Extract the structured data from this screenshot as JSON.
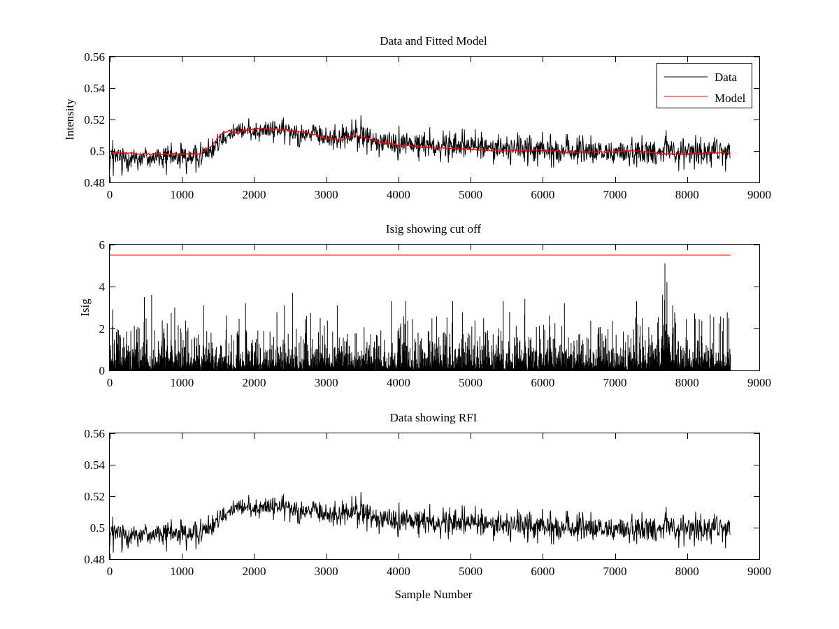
{
  "figure": {
    "background": "#ffffff",
    "data_color": "#000000",
    "model_color": "#ff0000"
  },
  "chart_data": [
    {
      "type": "line",
      "title": "Data and Fitted Model",
      "xlabel": "",
      "ylabel": "Intensity",
      "xlim": [
        0,
        9000
      ],
      "ylim": [
        0.48,
        0.56
      ],
      "xticks": [
        0,
        1000,
        2000,
        3000,
        4000,
        5000,
        6000,
        7000,
        8000,
        9000
      ],
      "yticks": [
        0.48,
        0.5,
        0.52,
        0.54,
        0.56
      ],
      "xtick_labels": [
        "0",
        "1000",
        "2000",
        "3000",
        "4000",
        "5000",
        "6000",
        "7000",
        "8000",
        "9000"
      ],
      "ytick_labels": [
        "0.48",
        "0.5",
        "0.52",
        "0.54",
        "0.56"
      ],
      "grid": false,
      "legend": {
        "position": "top-right",
        "entries": [
          "Data",
          "Model"
        ]
      },
      "series": [
        {
          "name": "Data",
          "color": "#000000",
          "envelope": {
            "x": [
              0,
              1000,
              1300,
              1500,
              1650,
              2000,
              2300,
              2700,
              3000,
              3200,
              3400,
              3600,
              4000,
              5000,
              6000,
              6500,
              7000,
              7500,
              7650,
              7700,
              7800,
              8000,
              8600
            ],
            "center": [
              0.496,
              0.496,
              0.498,
              0.507,
              0.512,
              0.513,
              0.514,
              0.512,
              0.508,
              0.508,
              0.511,
              0.508,
              0.505,
              0.503,
              0.501,
              0.499,
              0.499,
              0.499,
              0.5,
              0.505,
              0.5,
              0.499,
              0.5
            ],
            "low": [
              0.484,
              0.485,
              0.487,
              0.494,
              0.503,
              0.504,
              0.505,
              0.502,
              0.498,
              0.498,
              0.5,
              0.497,
              0.494,
              0.492,
              0.49,
              0.488,
              0.488,
              0.488,
              0.489,
              0.494,
              0.488,
              0.486,
              0.487
            ],
            "high": [
              0.507,
              0.505,
              0.508,
              0.515,
              0.52,
              0.521,
              0.521,
              0.52,
              0.517,
              0.517,
              0.525,
              0.519,
              0.516,
              0.514,
              0.512,
              0.51,
              0.51,
              0.51,
              0.513,
              0.522,
              0.512,
              0.51,
              0.511
            ]
          }
        },
        {
          "name": "Model",
          "color": "#ff0000",
          "x": [
            0,
            500,
            1000,
            1250,
            1400,
            1550,
            1650,
            1750,
            1850,
            2000,
            2300,
            2700,
            3000,
            3200,
            3400,
            3550,
            3800,
            4200,
            4600,
            5000,
            5500,
            6000,
            6500,
            7000,
            7300,
            7500,
            7700,
            8000,
            8300,
            8600
          ],
          "y": [
            0.499,
            0.498,
            0.498,
            0.498,
            0.503,
            0.511,
            0.513,
            0.511,
            0.513,
            0.514,
            0.514,
            0.512,
            0.508,
            0.507,
            0.51,
            0.508,
            0.505,
            0.503,
            0.502,
            0.501,
            0.5,
            0.5005,
            0.499,
            0.4995,
            0.5,
            0.499,
            0.498,
            0.498,
            0.499,
            0.499
          ]
        }
      ]
    },
    {
      "type": "line",
      "title": "Isig showing cut off",
      "xlabel": "",
      "ylabel": "Isig",
      "xlim": [
        0,
        9000
      ],
      "ylim": [
        0,
        6
      ],
      "xticks": [
        0,
        1000,
        2000,
        3000,
        4000,
        5000,
        6000,
        7000,
        8000,
        9000
      ],
      "yticks": [
        0,
        2,
        4,
        6
      ],
      "xtick_labels": [
        "0",
        "1000",
        "2000",
        "3000",
        "4000",
        "5000",
        "6000",
        "7000",
        "8000",
        "9000"
      ],
      "ytick_labels": [
        "0",
        "2",
        "4",
        "6"
      ],
      "grid": false,
      "series": [
        {
          "color": "#000000",
          "typical_max": 2.8,
          "peaks": [
            {
              "x": 40,
              "y": 2.9
            },
            {
              "x": 480,
              "y": 3.5
            },
            {
              "x": 580,
              "y": 3.6
            },
            {
              "x": 900,
              "y": 3.0
            },
            {
              "x": 1300,
              "y": 3.1
            },
            {
              "x": 1880,
              "y": 3.2
            },
            {
              "x": 2420,
              "y": 3.1
            },
            {
              "x": 2530,
              "y": 3.7
            },
            {
              "x": 3150,
              "y": 3.1
            },
            {
              "x": 3900,
              "y": 3.3
            },
            {
              "x": 4100,
              "y": 3.3
            },
            {
              "x": 4750,
              "y": 3.3
            },
            {
              "x": 5450,
              "y": 3.3
            },
            {
              "x": 5750,
              "y": 3.4
            },
            {
              "x": 6300,
              "y": 3.2
            },
            {
              "x": 7300,
              "y": 3.3
            },
            {
              "x": 7690,
              "y": 5.1
            },
            {
              "x": 7720,
              "y": 4.2
            },
            {
              "x": 7660,
              "y": 3.6
            },
            {
              "x": 7800,
              "y": 3.1
            },
            {
              "x": 8500,
              "y": 2.5
            }
          ],
          "x_end": 8600
        },
        {
          "color": "#ff0000",
          "label": "cut off",
          "x": [
            0,
            8600
          ],
          "y": [
            5.5,
            5.5
          ]
        }
      ]
    },
    {
      "type": "line",
      "title": "Data showing RFI",
      "xlabel": "Sample Number",
      "ylabel": "",
      "xlim": [
        0,
        9000
      ],
      "ylim": [
        0.48,
        0.56
      ],
      "xticks": [
        0,
        1000,
        2000,
        3000,
        4000,
        5000,
        6000,
        7000,
        8000,
        9000
      ],
      "yticks": [
        0.48,
        0.5,
        0.52,
        0.54,
        0.56
      ],
      "xtick_labels": [
        "0",
        "1000",
        "2000",
        "3000",
        "4000",
        "5000",
        "6000",
        "7000",
        "8000",
        "9000"
      ],
      "ytick_labels": [
        "0.48",
        "0.5",
        "0.52",
        "0.54",
        "0.56"
      ],
      "grid": false,
      "series": [
        {
          "color": "#000000",
          "same_as": "Data"
        }
      ]
    }
  ]
}
